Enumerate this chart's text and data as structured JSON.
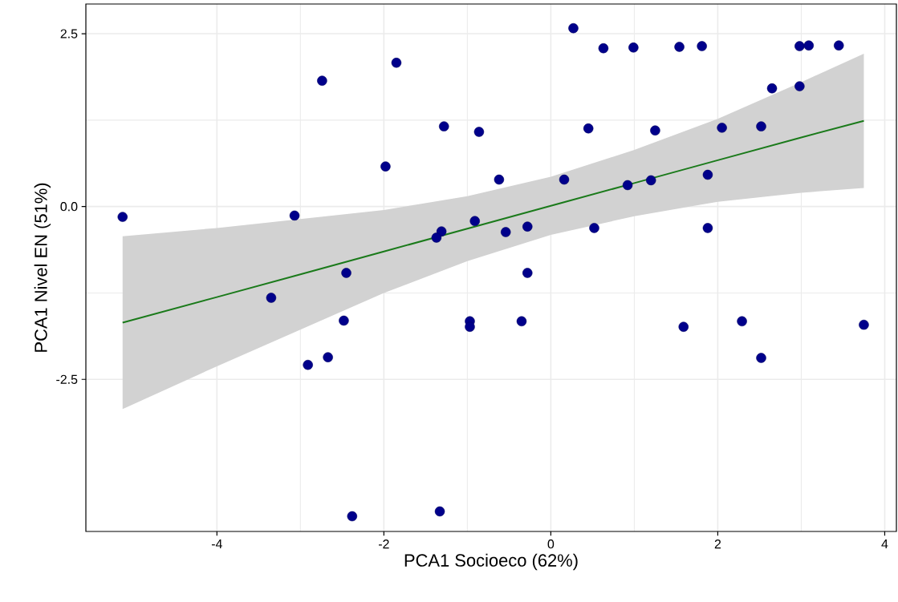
{
  "chart_data": {
    "type": "scatter",
    "xlabel": "PCA1 Socioeco (62%)",
    "ylabel": "PCA1 Nivel EN (51%)",
    "xlim": [
      -5.57,
      4.14
    ],
    "ylim": [
      -4.7,
      2.93
    ],
    "xticks": [
      -4,
      -2,
      0,
      2,
      4
    ],
    "yticks": [
      {
        "value": -2.5,
        "label": "-2.5"
      },
      {
        "value": 0,
        "label": "0.0"
      },
      {
        "value": 2.5,
        "label": "2.5"
      }
    ],
    "grid": true,
    "series": [
      {
        "marker": "circle",
        "color": "#00008b",
        "x": [
          -5.13,
          -3.07,
          -3.35,
          -2.74,
          -2.91,
          -2.67,
          -2.45,
          -2.48,
          -2.38,
          -1.33,
          -1.85,
          -1.98,
          -1.28,
          -1.31,
          -1.37,
          -0.97,
          -0.97,
          -0.91,
          -0.86,
          -0.62,
          -0.54,
          -0.28,
          -0.28,
          -0.35,
          0.16,
          0.27,
          0.63,
          0.45,
          0.52,
          0.99,
          0.92,
          1.2,
          1.25,
          1.54,
          1.81,
          1.88,
          1.88,
          1.59,
          2.05,
          2.29,
          2.52,
          2.52,
          2.65,
          2.98,
          2.98,
          3.09,
          3.45,
          3.75
        ],
        "values": [
          -0.15,
          -0.13,
          -1.32,
          1.82,
          -2.29,
          -2.18,
          -0.96,
          -1.65,
          -4.48,
          -4.41,
          2.08,
          0.58,
          1.16,
          -0.36,
          -0.45,
          -1.66,
          -1.74,
          -0.21,
          1.08,
          0.39,
          -0.37,
          -0.29,
          -0.96,
          -1.66,
          0.39,
          2.58,
          2.29,
          1.13,
          -0.31,
          2.3,
          0.31,
          0.38,
          1.1,
          2.31,
          2.32,
          0.46,
          -0.31,
          -1.74,
          1.14,
          -1.66,
          1.16,
          -2.19,
          1.71,
          1.74,
          2.32,
          2.33,
          2.33,
          -1.71
        ]
      },
      {
        "type": "line",
        "marker": "none",
        "color": "#1a7a1a",
        "x": [
          -5.13,
          -4,
          -3,
          -2,
          -1,
          0,
          1,
          2,
          3,
          3.75
        ],
        "values": [
          -1.68,
          -1.31,
          -0.98,
          -0.65,
          -0.32,
          0.01,
          0.34,
          0.67,
          1.0,
          1.24
        ],
        "lower": [
          -2.93,
          -2.31,
          -1.78,
          -1.25,
          -0.79,
          -0.41,
          -0.14,
          0.07,
          0.2,
          0.27
        ],
        "upper": [
          -0.43,
          -0.31,
          -0.18,
          -0.05,
          0.15,
          0.43,
          0.82,
          1.27,
          1.8,
          2.21
        ]
      }
    ]
  }
}
